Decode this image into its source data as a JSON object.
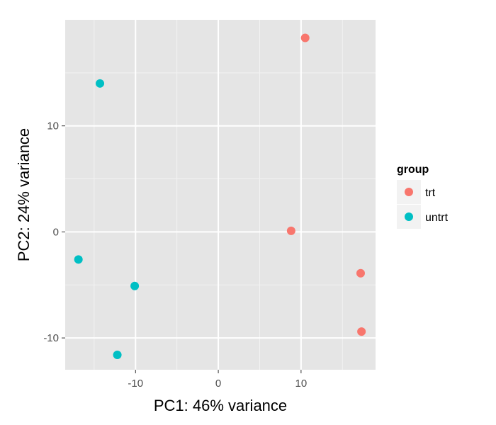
{
  "chart_data": {
    "type": "scatter",
    "xlabel": "PC1: 46% variance",
    "ylabel": "PC2: 24% variance",
    "xlim": [
      -18.5,
      19
    ],
    "ylim": [
      -13,
      20
    ],
    "x_ticks": [
      -10,
      0,
      10
    ],
    "y_ticks": [
      -10,
      0,
      10
    ],
    "x_tick_labels": [
      "-10",
      "0",
      "10"
    ],
    "y_tick_labels": [
      "-10",
      "0",
      "10"
    ],
    "grid": true,
    "legend": {
      "title": "group",
      "placement": "right"
    },
    "series": [
      {
        "name": "trt",
        "color": "#F8766D",
        "points": [
          {
            "x": 10.5,
            "y": 18.3
          },
          {
            "x": 8.8,
            "y": 0.1
          },
          {
            "x": 17.2,
            "y": -3.9
          },
          {
            "x": 17.3,
            "y": -9.4
          }
        ]
      },
      {
        "name": "untrt",
        "color": "#00BFC4",
        "points": [
          {
            "x": -14.3,
            "y": 14.0
          },
          {
            "x": -16.9,
            "y": -2.6
          },
          {
            "x": -10.1,
            "y": -5.1
          },
          {
            "x": -12.2,
            "y": -11.6
          }
        ]
      }
    ]
  }
}
